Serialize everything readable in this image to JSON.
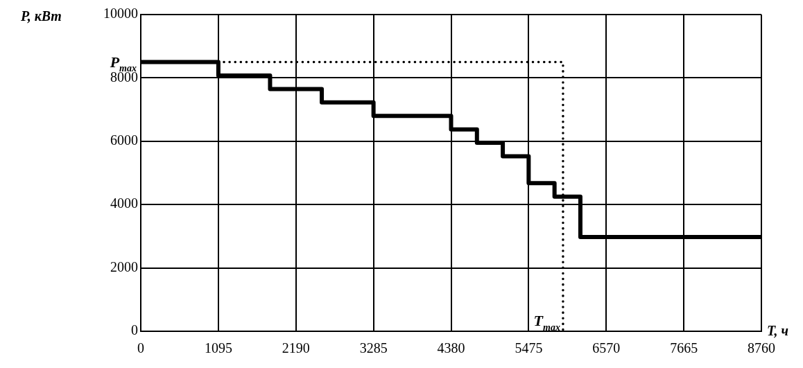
{
  "chart_data": {
    "type": "step",
    "xlabel": "T, ч",
    "ylabel": "P, кВт",
    "xlim": [
      0,
      8760
    ],
    "xticks": [
      0,
      1095,
      2190,
      3285,
      4380,
      5475,
      6570,
      7665,
      8760
    ],
    "ylim": [
      0,
      10000
    ],
    "yticks": [
      0,
      2000,
      4000,
      6000,
      8000,
      10000
    ],
    "grid": true,
    "legend": false,
    "marker": "none",
    "series": [
      {
        "type": "step",
        "color": "#000000",
        "x": [
          0,
          1095,
          1825,
          2555,
          3285,
          4380,
          4745,
          5110,
          5475,
          5840,
          6205,
          8760
        ],
        "values": [
          8500,
          8075,
          7650,
          7225,
          6800,
          6375,
          5950,
          5525,
          4675,
          4250,
          2975,
          2975
        ]
      },
      {
        "type": "line",
        "line_style": "dotted",
        "color": "#000000",
        "x": [
          1095,
          5960,
          5960
        ],
        "values": [
          8500,
          8500,
          0
        ]
      }
    ],
    "annotations": [
      {
        "text": "P$_{max}$",
        "x": 0,
        "y": 8500
      },
      {
        "text": "T$_{max}$",
        "x": 5960,
        "y": 0
      }
    ]
  }
}
